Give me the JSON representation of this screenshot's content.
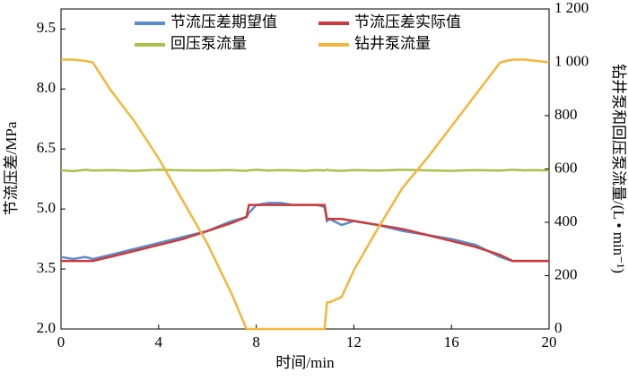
{
  "chart_data": {
    "type": "line",
    "xlabel": "时间/min",
    "ylabel": "节流压差/MPa",
    "y2label": "钻井泵和回压泵流量/(L • min⁻¹)",
    "x": [
      0,
      0.5,
      1,
      1.3,
      2,
      3,
      4,
      5,
      6,
      7,
      7.6,
      7.7,
      8,
      8.5,
      9,
      9.5,
      10,
      10.5,
      10.8,
      10.9,
      11,
      11.5,
      12,
      13,
      14,
      15,
      16,
      17,
      18,
      18.5,
      19,
      19.5,
      20
    ],
    "xlim": [
      0,
      20
    ],
    "xticks": [
      0,
      4,
      8,
      12,
      16,
      20
    ],
    "ylim": [
      2,
      10
    ],
    "yticks": [
      {
        "value": 2,
        "label": "2.0"
      },
      3.5,
      {
        "value": 5,
        "label": "5.0"
      },
      6.5,
      {
        "value": 8,
        "label": "8.0"
      },
      9.5
    ],
    "y2lim": [
      0,
      1200
    ],
    "y2ticks": [
      0,
      200,
      400,
      600,
      800,
      {
        "value": 1000,
        "label": "1 000"
      },
      {
        "value": 1200,
        "label": "1 200"
      }
    ],
    "legend": "top",
    "series": [
      {
        "name": "节流压差期望值",
        "color": "#5b8ccc",
        "values": [
          3.8,
          3.75,
          3.8,
          3.75,
          3.85,
          4.0,
          4.15,
          4.3,
          4.45,
          4.7,
          4.8,
          4.9,
          5.1,
          5.15,
          5.15,
          5.1,
          5.1,
          5.1,
          5.05,
          4.7,
          4.75,
          4.6,
          4.7,
          4.6,
          4.45,
          4.35,
          4.25,
          4.1,
          3.8,
          3.7,
          3.7,
          3.7,
          3.7
        ]
      },
      {
        "name": "节流压差实际值",
        "color": "#cc3b3b",
        "values": [
          3.7,
          3.7,
          3.7,
          3.7,
          3.8,
          3.95,
          4.1,
          4.25,
          4.45,
          4.65,
          4.8,
          5.1,
          5.1,
          5.1,
          5.1,
          5.1,
          5.1,
          5.1,
          5.1,
          4.75,
          4.75,
          4.75,
          4.7,
          4.6,
          4.5,
          4.35,
          4.2,
          4.05,
          3.85,
          3.7,
          3.7,
          3.7,
          3.7
        ]
      },
      {
        "name": "回压泵流量",
        "color": "#a9c24a",
        "axis": "y2",
        "values": [
          595,
          592,
          597,
          594,
          596,
          593,
          597,
          595,
          594,
          596,
          593,
          595,
          597,
          594,
          596,
          595,
          593,
          596,
          594,
          597,
          595,
          593,
          596,
          594,
          597,
          595,
          593,
          596,
          594,
          597,
          595,
          596,
          594
        ]
      },
      {
        "name": "钻井泵流量",
        "color": "#f4b63a",
        "axis": "y2",
        "values": [
          1010,
          1010,
          1005,
          1000,
          900,
          780,
          640,
          480,
          320,
          130,
          0,
          0,
          0,
          0,
          0,
          0,
          0,
          0,
          0,
          100,
          100,
          120,
          220,
          380,
          530,
          640,
          760,
          880,
          1000,
          1010,
          1010,
          1005,
          1000
        ]
      }
    ]
  }
}
